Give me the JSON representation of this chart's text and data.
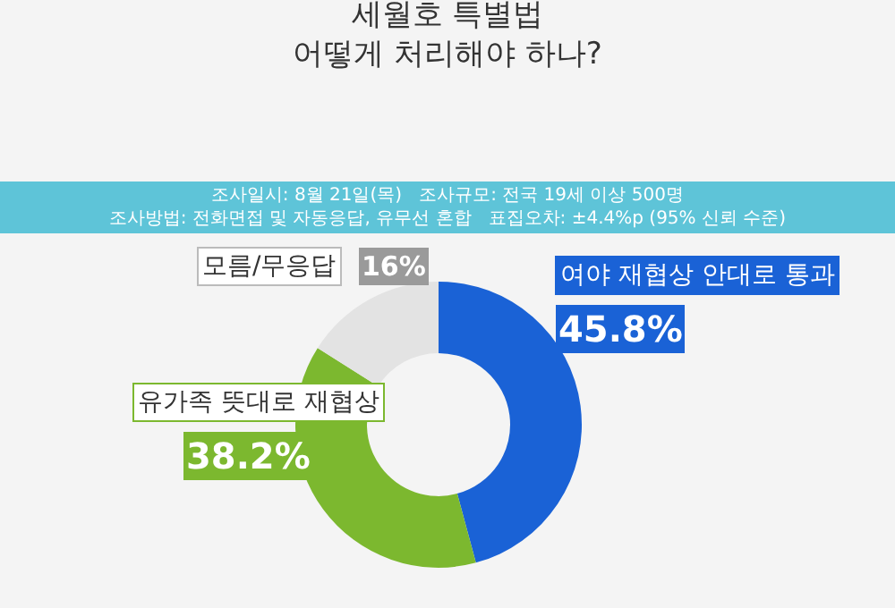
{
  "chart_data": {
    "type": "donut",
    "title": "세월호 특별법\n어떻게 처리해야 하나?",
    "subtitle": "조사일시: 8월 21일(목)   조사규모: 전국 19세 이상 500명   조사방법: 전화면접 및 자동응답, 유무선 혼합   표집오차: ±4.4%p (95% 신뢰 수준)",
    "categories": [
      "여야 재협상 안대로 통과",
      "유가족 뜻대로 재협상",
      "모름/무응답"
    ],
    "values": [
      45.8,
      38.2,
      16
    ],
    "value_labels": [
      "45.8%",
      "38.2%",
      "16%"
    ],
    "colors": [
      "#1a62d6",
      "#7cb82f",
      "#e3e3e3"
    ],
    "legend": false
  }
}
